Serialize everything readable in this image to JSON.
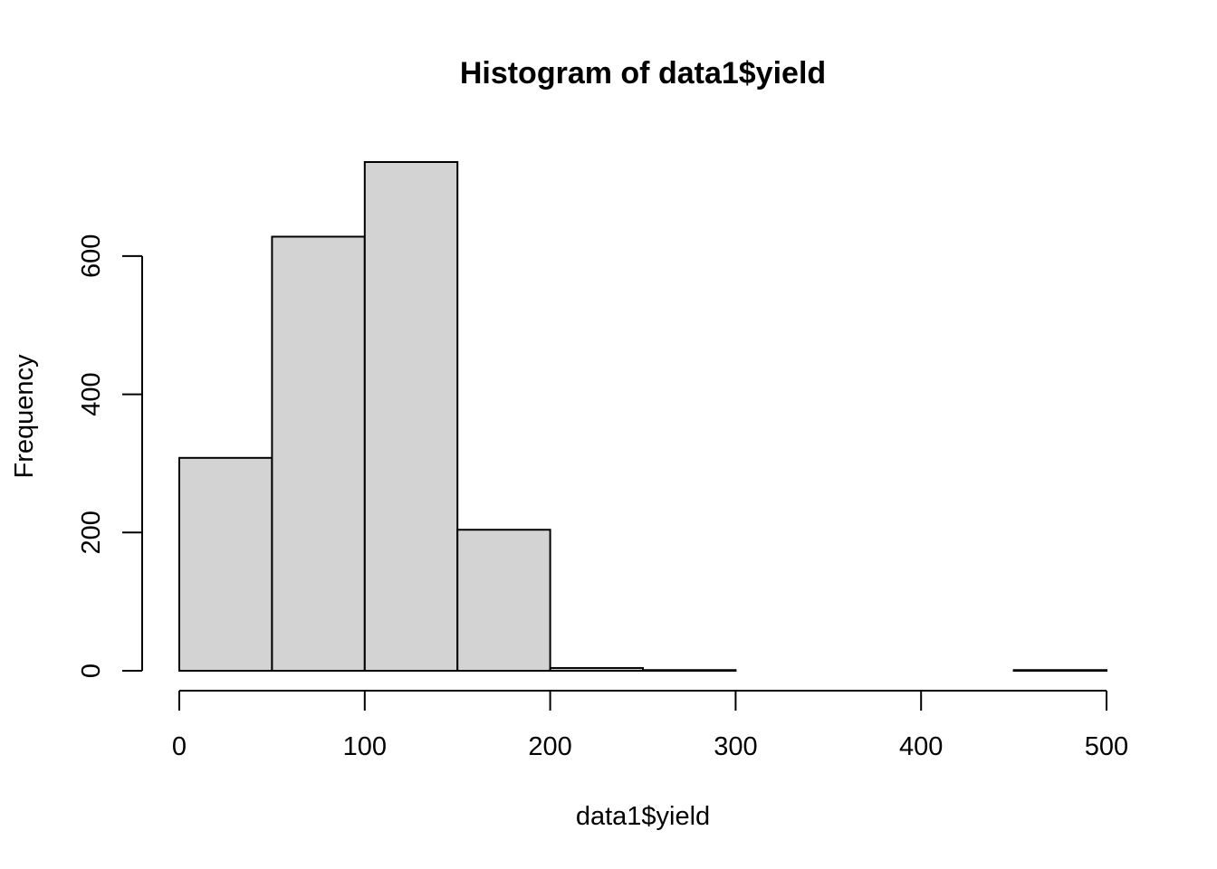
{
  "chart_data": {
    "type": "bar",
    "title": "Histogram of data1$yield",
    "xlabel": "data1$yield",
    "ylabel": "Frequency",
    "bins": [
      {
        "start": 0,
        "end": 50,
        "value": 308
      },
      {
        "start": 50,
        "end": 100,
        "value": 628
      },
      {
        "start": 100,
        "end": 150,
        "value": 736
      },
      {
        "start": 150,
        "end": 200,
        "value": 204
      },
      {
        "start": 200,
        "end": 250,
        "value": 4
      },
      {
        "start": 250,
        "end": 300,
        "value": 1
      },
      {
        "start": 300,
        "end": 350,
        "value": 0
      },
      {
        "start": 350,
        "end": 400,
        "value": 0
      },
      {
        "start": 400,
        "end": 450,
        "value": 0
      },
      {
        "start": 450,
        "end": 500,
        "value": 1
      }
    ],
    "xlim": [
      0,
      500
    ],
    "ylim": [
      0,
      736
    ],
    "xticks": [
      0,
      100,
      200,
      300,
      400,
      500
    ],
    "yticks": [
      0,
      200,
      400,
      600
    ],
    "bar_color": "#d3d3d3",
    "grid": false,
    "legend": "none"
  }
}
